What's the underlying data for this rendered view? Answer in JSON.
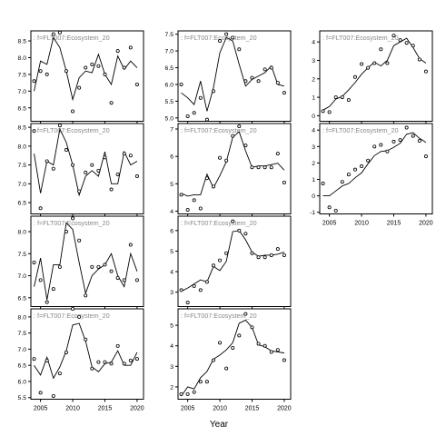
{
  "chart_data": {
    "type": "line",
    "xlabel": "Year",
    "ylabel": "",
    "x_ticks": [
      2005,
      2010,
      2015,
      2020
    ],
    "panel_columns": 3,
    "panel_rows": 4,
    "series_styles": {
      "observed": "open circles",
      "fitted": "line"
    },
    "colors": {
      "line": "#000000",
      "points": "#000000",
      "strip_text": "#888888",
      "axis": "#000000"
    },
    "panels": [
      {
        "label": "f=FLT007:Ecosystem_20",
        "xlim": [
          2003.5,
          2021
        ],
        "ylim": [
          6.1,
          8.8
        ],
        "yticks": [
          6.5,
          7.0,
          7.5,
          8.0,
          8.5
        ],
        "x": [
          2004,
          2005,
          2006,
          2007,
          2008,
          2009,
          2010,
          2011,
          2012,
          2013,
          2014,
          2015,
          2016,
          2017,
          2018,
          2019,
          2020
        ],
        "observed": [
          7.3,
          7.6,
          7.5,
          8.7,
          8.75,
          7.6,
          6.4,
          7.1,
          7.7,
          7.8,
          7.75,
          7.5,
          6.65,
          8.2,
          7.7,
          8.3,
          7.2
        ],
        "fitted": [
          7.0,
          7.9,
          7.8,
          8.6,
          8.3,
          7.6,
          6.75,
          7.4,
          7.6,
          7.55,
          8.1,
          7.5,
          7.2,
          8.05,
          7.65,
          7.9,
          7.7
        ]
      },
      {
        "label": "f=FLT007:Ecosystem_20",
        "xlim": [
          2003.5,
          2021
        ],
        "ylim": [
          4.9,
          7.6
        ],
        "yticks": [
          5.0,
          5.5,
          6.0,
          6.5,
          7.0,
          7.5
        ],
        "x": [
          2004,
          2005,
          2006,
          2007,
          2008,
          2009,
          2010,
          2011,
          2012,
          2013,
          2014,
          2015,
          2016,
          2017,
          2018,
          2019,
          2020
        ],
        "observed": [
          6.0,
          5.05,
          5.15,
          5.6,
          4.95,
          5.8,
          7.3,
          7.5,
          7.4,
          7.05,
          6.1,
          6.2,
          6.1,
          6.45,
          6.5,
          6.05,
          5.75
        ],
        "fitted": [
          5.75,
          5.6,
          5.4,
          6.1,
          5.2,
          5.9,
          6.95,
          7.4,
          7.3,
          6.6,
          5.95,
          6.15,
          6.25,
          6.35,
          6.55,
          6.0,
          5.95
        ]
      },
      {
        "label": "f=FLT007:Ecosystem_20",
        "xlim": [
          2003.5,
          2021
        ],
        "ylim": [
          -0.3,
          4.6
        ],
        "yticks": [
          0,
          1,
          2,
          3,
          4
        ],
        "x": [
          2004,
          2005,
          2006,
          2007,
          2008,
          2009,
          2010,
          2011,
          2012,
          2013,
          2014,
          2015,
          2016,
          2017,
          2018,
          2019,
          2020
        ],
        "observed": [
          0.25,
          0.2,
          1.0,
          1.0,
          0.85,
          2.1,
          2.8,
          2.6,
          2.85,
          3.6,
          2.85,
          4.35,
          4.1,
          3.95,
          3.8,
          3.05,
          2.4
        ],
        "fitted": [
          0.3,
          0.5,
          0.9,
          1.05,
          1.4,
          1.8,
          2.25,
          2.6,
          2.9,
          2.7,
          3.0,
          3.8,
          4.0,
          4.2,
          3.7,
          3.1,
          2.85
        ]
      },
      {
        "label": "f=FLT007:Ecosystem_20",
        "xlim": [
          2003.5,
          2021
        ],
        "ylim": [
          6.2,
          8.6
        ],
        "yticks": [
          6.5,
          7.0,
          7.5,
          8.0,
          8.5
        ],
        "x": [
          2004,
          2005,
          2006,
          2007,
          2008,
          2009,
          2010,
          2011,
          2012,
          2013,
          2014,
          2015,
          2016,
          2017,
          2018,
          2019,
          2020
        ],
        "observed": [
          8.4,
          6.35,
          7.6,
          7.4,
          8.55,
          7.9,
          7.5,
          6.8,
          7.3,
          7.5,
          7.35,
          7.7,
          6.85,
          7.25,
          7.8,
          7.75,
          7.2
        ],
        "fitted": [
          7.8,
          6.75,
          7.6,
          7.5,
          8.45,
          8.1,
          7.5,
          6.7,
          7.2,
          7.35,
          7.2,
          7.85,
          7.0,
          7.0,
          7.85,
          7.5,
          7.6
        ]
      },
      {
        "label": "f=FLT007:Ecosystem_20",
        "xlim": [
          2003.5,
          2021
        ],
        "ylim": [
          3.9,
          7.2
        ],
        "yticks": [
          4.0,
          5.0,
          6.0,
          7.0
        ],
        "x": [
          2004,
          2005,
          2006,
          2007,
          2008,
          2009,
          2010,
          2011,
          2012,
          2013,
          2014,
          2015,
          2016,
          2017,
          2018,
          2019,
          2020
        ],
        "observed": [
          4.6,
          4.05,
          4.4,
          4.1,
          5.2,
          4.9,
          5.95,
          5.85,
          6.75,
          7.1,
          6.4,
          5.6,
          5.6,
          5.6,
          5.6,
          6.1,
          5.05
        ],
        "fitted": [
          4.65,
          4.55,
          4.6,
          4.6,
          5.35,
          4.85,
          5.3,
          5.8,
          6.7,
          6.9,
          6.2,
          5.6,
          5.65,
          5.65,
          5.7,
          5.75,
          5.5
        ]
      },
      {
        "label": "f=FLT007:Ecosystem_20",
        "xlim": [
          2003.5,
          2021
        ],
        "ylim": [
          -1.1,
          4.4
        ],
        "yticks": [
          -1,
          0,
          1,
          2,
          3,
          4
        ],
        "x": [
          2004,
          2005,
          2006,
          2007,
          2008,
          2009,
          2010,
          2011,
          2012,
          2013,
          2014,
          2015,
          2016,
          2017,
          2018,
          2019,
          2020
        ],
        "observed": [
          0.75,
          -0.7,
          -0.9,
          0.85,
          1.3,
          1.6,
          1.8,
          2.15,
          3.0,
          3.1,
          2.7,
          3.3,
          3.4,
          4.15,
          3.65,
          3.35,
          2.4
        ],
        "fitted": [
          0.0,
          0.0,
          0.3,
          0.6,
          0.75,
          1.1,
          1.4,
          1.95,
          2.45,
          2.7,
          2.75,
          2.95,
          3.2,
          3.75,
          3.85,
          3.5,
          3.25
        ]
      },
      {
        "label": "f=FLT007:Ecosystem_20",
        "xlim": [
          2003.5,
          2021
        ],
        "ylim": [
          6.3,
          8.35
        ],
        "yticks": [
          6.5,
          7.0,
          7.5,
          8.0
        ],
        "x": [
          2004,
          2005,
          2006,
          2007,
          2008,
          2009,
          2010,
          2011,
          2012,
          2013,
          2014,
          2015,
          2016,
          2017,
          2018,
          2019,
          2020
        ],
        "observed": [
          7.3,
          6.9,
          6.4,
          6.7,
          7.2,
          8.0,
          8.3,
          7.8,
          6.55,
          7.2,
          7.2,
          7.25,
          7.1,
          6.95,
          6.9,
          7.7,
          6.9
        ],
        "fitted": [
          6.75,
          7.4,
          6.45,
          7.25,
          7.25,
          8.2,
          8.05,
          7.3,
          6.6,
          7.0,
          7.15,
          7.25,
          7.5,
          7.0,
          6.75,
          7.5,
          7.1
        ]
      },
      {
        "label": "f=FLT007:Ecosystem_20",
        "xlim": [
          2003.5,
          2021
        ],
        "ylim": [
          2.3,
          6.7
        ],
        "yticks": [
          3,
          4,
          5,
          6
        ],
        "x": [
          2004,
          2005,
          2006,
          2007,
          2008,
          2009,
          2010,
          2011,
          2012,
          2013,
          2014,
          2015,
          2016,
          2017,
          2018,
          2019,
          2020
        ],
        "observed": [
          3.1,
          2.5,
          3.3,
          3.1,
          3.5,
          4.3,
          4.55,
          4.9,
          6.45,
          6.0,
          5.85,
          4.9,
          4.7,
          4.7,
          4.8,
          5.1,
          4.8
        ],
        "fitted": [
          3.05,
          3.2,
          3.4,
          3.6,
          3.5,
          4.25,
          4.05,
          4.5,
          5.95,
          6.0,
          5.55,
          4.95,
          4.75,
          4.8,
          4.8,
          4.85,
          4.95
        ]
      },
      {
        "label": "f=FLT007:Ecosystem_20",
        "xlim": [
          2003.5,
          2021
        ],
        "ylim": [
          5.45,
          8.25
        ],
        "yticks": [
          5.5,
          6.0,
          6.5,
          7.0,
          7.5,
          8.0
        ],
        "x": [
          2004,
          2005,
          2006,
          2007,
          2008,
          2009,
          2010,
          2011,
          2012,
          2013,
          2014,
          2015,
          2016,
          2017,
          2018,
          2019,
          2020
        ],
        "observed": [
          6.7,
          5.65,
          6.65,
          5.55,
          6.25,
          6.9,
          8.25,
          8.0,
          7.3,
          6.4,
          6.6,
          6.6,
          6.55,
          7.1,
          6.55,
          6.65,
          6.7
        ],
        "fitted": [
          6.5,
          6.2,
          6.75,
          6.1,
          6.45,
          6.95,
          7.75,
          7.8,
          7.25,
          6.45,
          6.3,
          6.55,
          6.6,
          6.95,
          6.5,
          6.5,
          6.9
        ]
      },
      {
        "label": "f=FLT007:Ecosystem_20",
        "xlim": [
          2003.5,
          2021
        ],
        "ylim": [
          1.4,
          5.8
        ],
        "yticks": [
          2,
          3,
          4,
          5
        ],
        "x": [
          2004,
          2005,
          2006,
          2007,
          2008,
          2009,
          2010,
          2011,
          2012,
          2013,
          2014,
          2015,
          2016,
          2017,
          2018,
          2019,
          2020
        ],
        "observed": [
          1.65,
          1.65,
          1.75,
          2.25,
          2.25,
          3.3,
          4.15,
          2.9,
          3.9,
          4.5,
          5.55,
          4.9,
          4.1,
          4.0,
          3.7,
          3.8,
          3.3
        ],
        "fitted": [
          1.55,
          2.0,
          1.9,
          2.45,
          2.75,
          3.35,
          3.55,
          3.8,
          4.15,
          5.1,
          5.25,
          4.9,
          4.05,
          3.95,
          3.75,
          3.7,
          3.65
        ]
      }
    ]
  }
}
